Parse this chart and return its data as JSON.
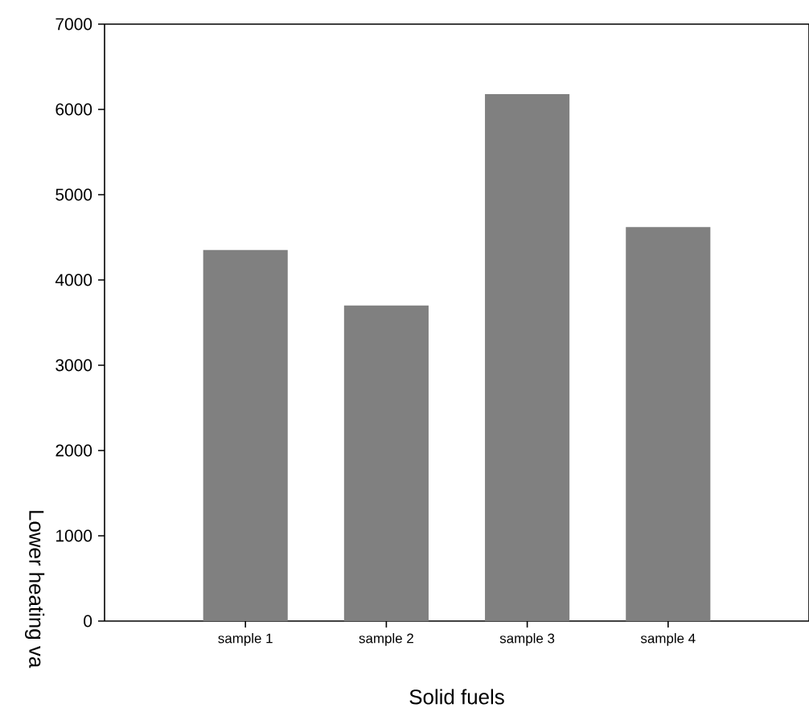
{
  "chart_data": {
    "type": "bar",
    "xlabel": "Solid fuels",
    "ylabel": "Lower heating va",
    "categories": [
      "sample 1",
      "sample 2",
      "sample 3",
      "sample 4"
    ],
    "values": [
      4350,
      3700,
      6180,
      4620
    ],
    "color": "#808080",
    "ylim": [
      0,
      7000
    ],
    "yticks": [
      0,
      1000,
      2000,
      3000,
      4000,
      5000,
      6000,
      7000
    ],
    "grid": false
  }
}
